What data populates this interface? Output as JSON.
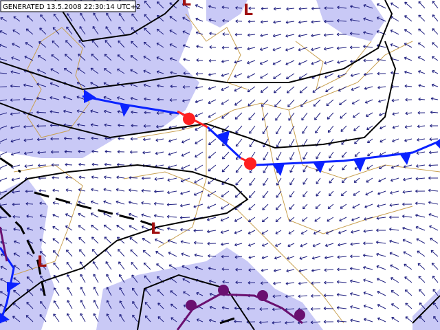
{
  "header": {
    "text": "GENERATED 13.5.2008 22:30:14 UTC+2"
  },
  "pressure_labels": [
    "L",
    "L",
    "L",
    "L"
  ]
}
